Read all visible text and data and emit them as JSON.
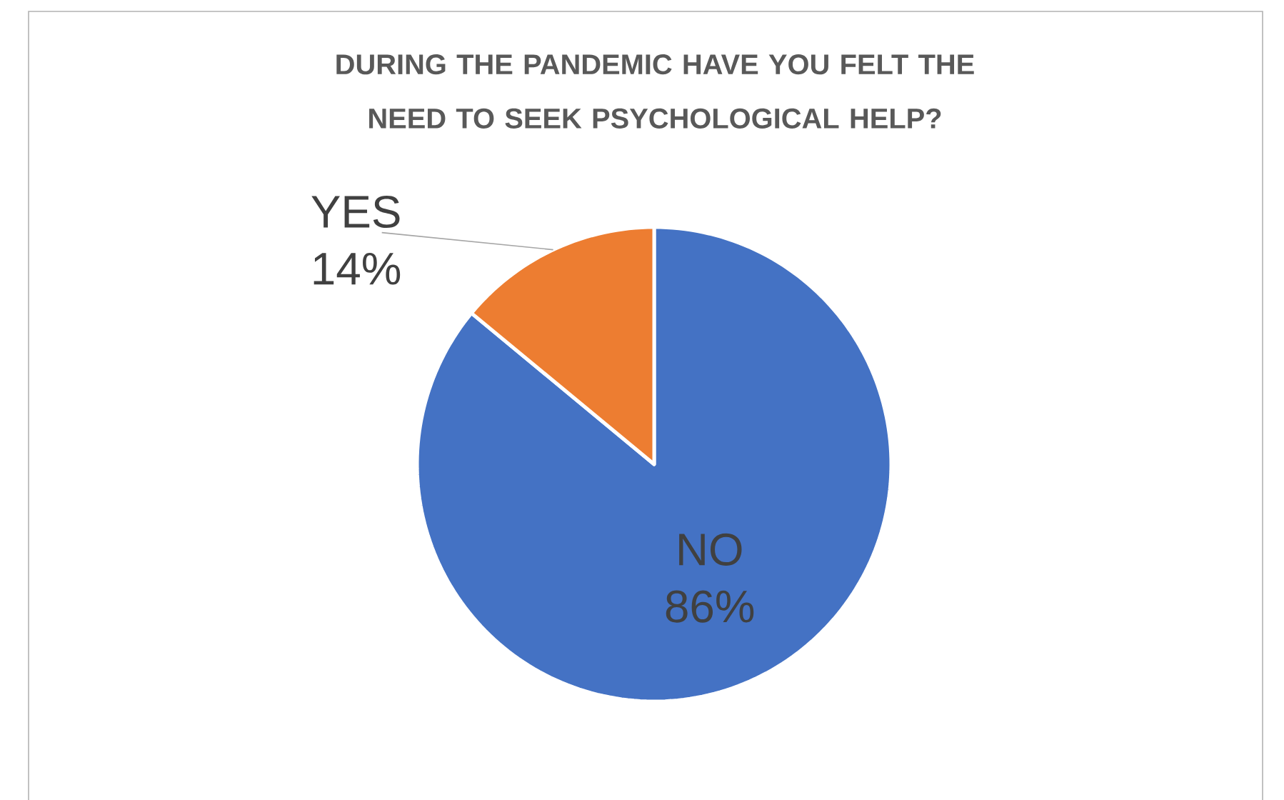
{
  "chart_data": {
    "type": "pie",
    "title": "DURING THE PANDEMIC HAVE YOU FELT THE NEED TO SEEK PSYCHOLOGICAL HELP?",
    "categories": [
      "NO",
      "YES"
    ],
    "values": [
      86,
      14
    ],
    "colors": [
      "#4472c4",
      "#ed7d31"
    ],
    "value_labels": [
      "86%",
      "14%"
    ]
  }
}
